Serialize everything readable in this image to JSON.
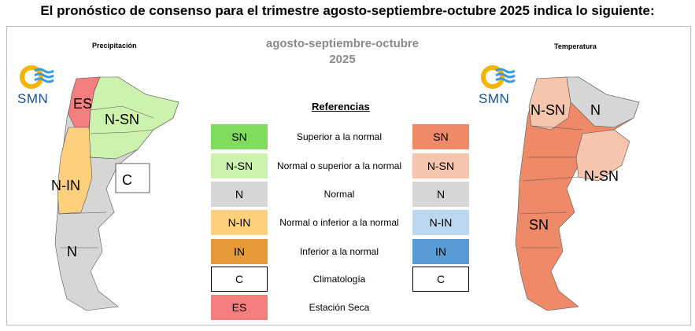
{
  "headline": "El pronóstico de consenso para el trimestre agosto-septiembre-octubre 2025 indica lo siguiente:",
  "period_line1": "agosto-septiembre-octubre",
  "period_line2": "2025",
  "legend_title": "Referencias",
  "logo_text": "SMN",
  "precip_map": {
    "title": "Precipitación",
    "labels": {
      "es": "ES",
      "nsn": "N-SN",
      "c": "C",
      "nin": "N-IN",
      "n": "N"
    }
  },
  "temp_map": {
    "title": "Temperatura",
    "labels": {
      "nsn_north": "N-SN",
      "n": "N",
      "nsn_east": "N-SN",
      "sn": "SN"
    }
  },
  "legend": [
    {
      "code_left": "SN",
      "color_left": "#7fdc5f",
      "desc": "Superior a la normal",
      "code_right": "SN",
      "color_right": "#ef8a68"
    },
    {
      "code_left": "N-SN",
      "color_left": "#cdf2ae",
      "desc": "Normal o superior a la normal",
      "code_right": "N-SN",
      "color_right": "#f6c5ae"
    },
    {
      "code_left": "N",
      "color_left": "#d6d6d6",
      "desc": "Normal",
      "code_right": "N",
      "color_right": "#d6d6d6"
    },
    {
      "code_left": "N-IN",
      "color_left": "#fdd07e",
      "desc": "Normal o inferior a la normal",
      "code_right": "N-IN",
      "color_right": "#bcd7ef"
    },
    {
      "code_left": "IN",
      "color_left": "#e59a37",
      "desc": "Inferior a la normal",
      "code_right": "IN",
      "color_right": "#5b9bd5"
    },
    {
      "code_left": "C",
      "color_left": "#ffffff",
      "desc": "Climatología",
      "code_right": "C",
      "color_right": "#ffffff"
    },
    {
      "code_left": "ES",
      "color_left": "#f47f7f",
      "desc": "Estación Seca"
    }
  ]
}
